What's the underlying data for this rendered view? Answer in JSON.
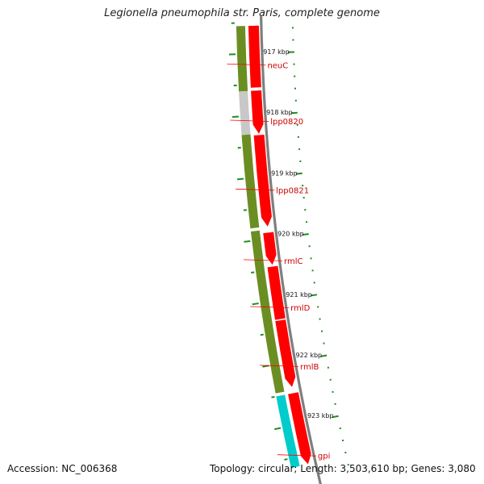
{
  "title": "Legionella pneumophila str. Paris, complete genome",
  "accession": "Accession: NC_006368",
  "summary": "Topology: circular; Length: 3,503,610 bp; Genes: 3,080",
  "colors": {
    "backbone": "#7f7f7f",
    "forward_cds": "#ff0000",
    "reverse_cds": "#6b8e23",
    "reverse_alt": "#c8c8c8",
    "reverse_cyan": "#00cccc",
    "tick": "#228b22",
    "gene_label": "#cc0000",
    "label_line": "#ff0000"
  },
  "ticks": [
    {
      "label": "917 kbp",
      "kbp": 917
    },
    {
      "label": "918 kbp",
      "kbp": 918
    },
    {
      "label": "919 kbp",
      "kbp": 919
    },
    {
      "label": "920 kbp",
      "kbp": 920
    },
    {
      "label": "921 kbp",
      "kbp": 921
    },
    {
      "label": "922 kbp",
      "kbp": 922
    },
    {
      "label": "923 kbp",
      "kbp": 923
    }
  ],
  "gene_labels": [
    {
      "label": "neuC",
      "kbp": 917.15
    },
    {
      "label": "lpp0820",
      "kbp": 918.05
    },
    {
      "label": "lpp0821",
      "kbp": 919.15
    },
    {
      "label": "rmlC",
      "kbp": 920.28
    },
    {
      "label": "rmlD",
      "kbp": 921.03
    },
    {
      "label": "rmlB",
      "kbp": 921.97
    },
    {
      "label": "gpi",
      "kbp": 923.4
    }
  ],
  "forward_features": [
    {
      "kbp_start": 916.55,
      "kbp_end": 917.55,
      "arrow": false
    },
    {
      "kbp_start": 917.6,
      "kbp_end": 918.3,
      "arrow": true
    },
    {
      "kbp_start": 918.32,
      "kbp_end": 919.8,
      "arrow": true
    },
    {
      "kbp_start": 919.9,
      "kbp_end": 920.42,
      "arrow": true
    },
    {
      "kbp_start": 920.45,
      "kbp_end": 921.3,
      "arrow": false
    },
    {
      "kbp_start": 921.32,
      "kbp_end": 922.4,
      "arrow": true
    },
    {
      "kbp_start": 922.5,
      "kbp_end": 923.65,
      "arrow": true
    }
  ],
  "reverse_features": [
    {
      "kbp_start": 916.55,
      "kbp_end": 917.6,
      "color": "reverse_cds"
    },
    {
      "kbp_start": 917.6,
      "kbp_end": 918.3,
      "color": "reverse_alt"
    },
    {
      "kbp_start": 918.3,
      "kbp_end": 919.8,
      "color": "reverse_cds"
    },
    {
      "kbp_start": 919.85,
      "kbp_end": 922.45,
      "color": "reverse_cds"
    },
    {
      "kbp_start": 922.5,
      "kbp_end": 923.65,
      "color": "reverse_cyan"
    }
  ]
}
